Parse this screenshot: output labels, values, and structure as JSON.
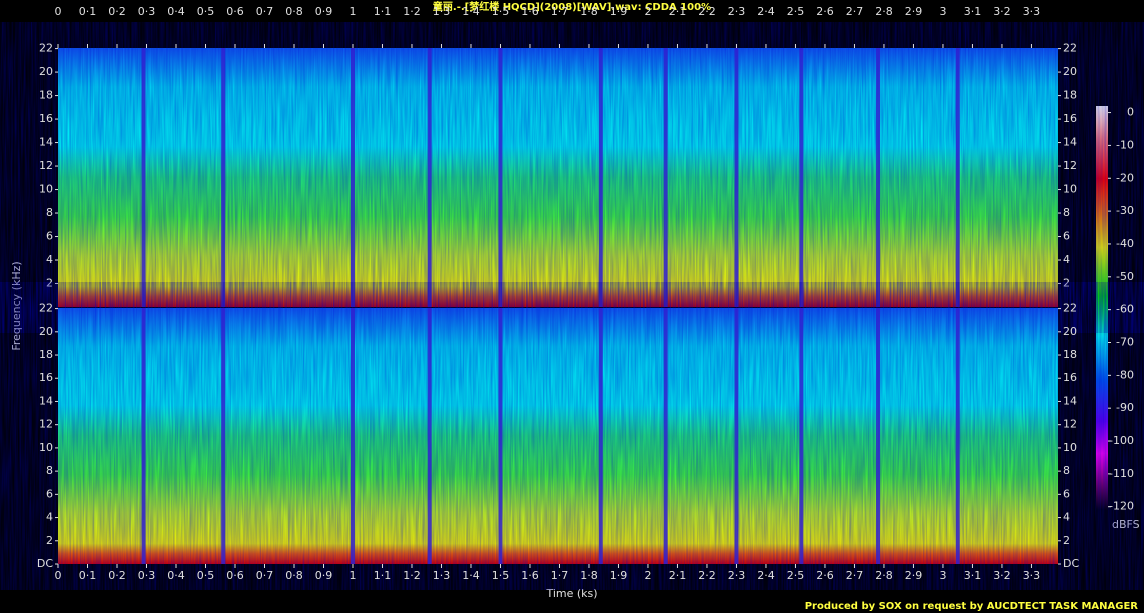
{
  "chart_data": {
    "type": "spectrogram",
    "title": "童丽.-.[梦红楼 HQCD](2008)[WAV].wav: CDDA 100%",
    "x_label": "Time (ks)",
    "y_label": "Frequency (kHz)",
    "xlim": [
      0,
      3.39
    ],
    "xticks": [
      0,
      {
        "value": 0.1,
        "label": "0·1"
      },
      {
        "value": 0.2,
        "label": "0·2"
      },
      {
        "value": 0.3,
        "label": "0·3"
      },
      {
        "value": 0.4,
        "label": "0·4"
      },
      {
        "value": 0.5,
        "label": "0·5"
      },
      {
        "value": 0.6,
        "label": "0·6"
      },
      {
        "value": 0.7,
        "label": "0·7"
      },
      {
        "value": 0.8,
        "label": "0·8"
      },
      {
        "value": 0.9,
        "label": "0·9"
      },
      1,
      {
        "value": 1.1,
        "label": "1·1"
      },
      {
        "value": 1.2,
        "label": "1·2"
      },
      {
        "value": 1.3,
        "label": "1·3"
      },
      {
        "value": 1.4,
        "label": "1·4"
      },
      {
        "value": 1.5,
        "label": "1·5"
      },
      {
        "value": 1.6,
        "label": "1·6"
      },
      {
        "value": 1.7,
        "label": "1·7"
      },
      {
        "value": 1.8,
        "label": "1·8"
      },
      {
        "value": 1.9,
        "label": "1·9"
      },
      2,
      {
        "value": 2.1,
        "label": "2·1"
      },
      {
        "value": 2.2,
        "label": "2·2"
      },
      {
        "value": 2.3,
        "label": "2·3"
      },
      {
        "value": 2.4,
        "label": "2·4"
      },
      {
        "value": 2.5,
        "label": "2·5"
      },
      {
        "value": 2.6,
        "label": "2·6"
      },
      {
        "value": 2.7,
        "label": "2·7"
      },
      {
        "value": 2.8,
        "label": "2·8"
      },
      {
        "value": 2.9,
        "label": "2·9"
      },
      3,
      {
        "value": 3.1,
        "label": "3·1"
      },
      {
        "value": 3.2,
        "label": "3·2"
      },
      {
        "value": 3.3,
        "label": "3·3"
      }
    ],
    "channels": [
      {
        "ylim": [
          0,
          22.05
        ],
        "yticks": [
          2,
          4,
          6,
          8,
          10,
          12,
          14,
          16,
          18,
          20,
          22
        ]
      },
      {
        "ylim": [
          0,
          22.05
        ],
        "yticks": [
          {
            "value": 0,
            "label": "DC"
          },
          2,
          4,
          6,
          8,
          10,
          12,
          14,
          16,
          18,
          20,
          22
        ]
      }
    ],
    "zlim": [
      -121,
      2
    ],
    "zticks": [
      0,
      -10,
      -20,
      -30,
      -40,
      -50,
      -60,
      -70,
      -80,
      -90,
      -100,
      -110,
      -120
    ],
    "z_label": "dBFS",
    "credit": "Produced by SOX on request by AUCDTECT TASK MANAGER"
  }
}
